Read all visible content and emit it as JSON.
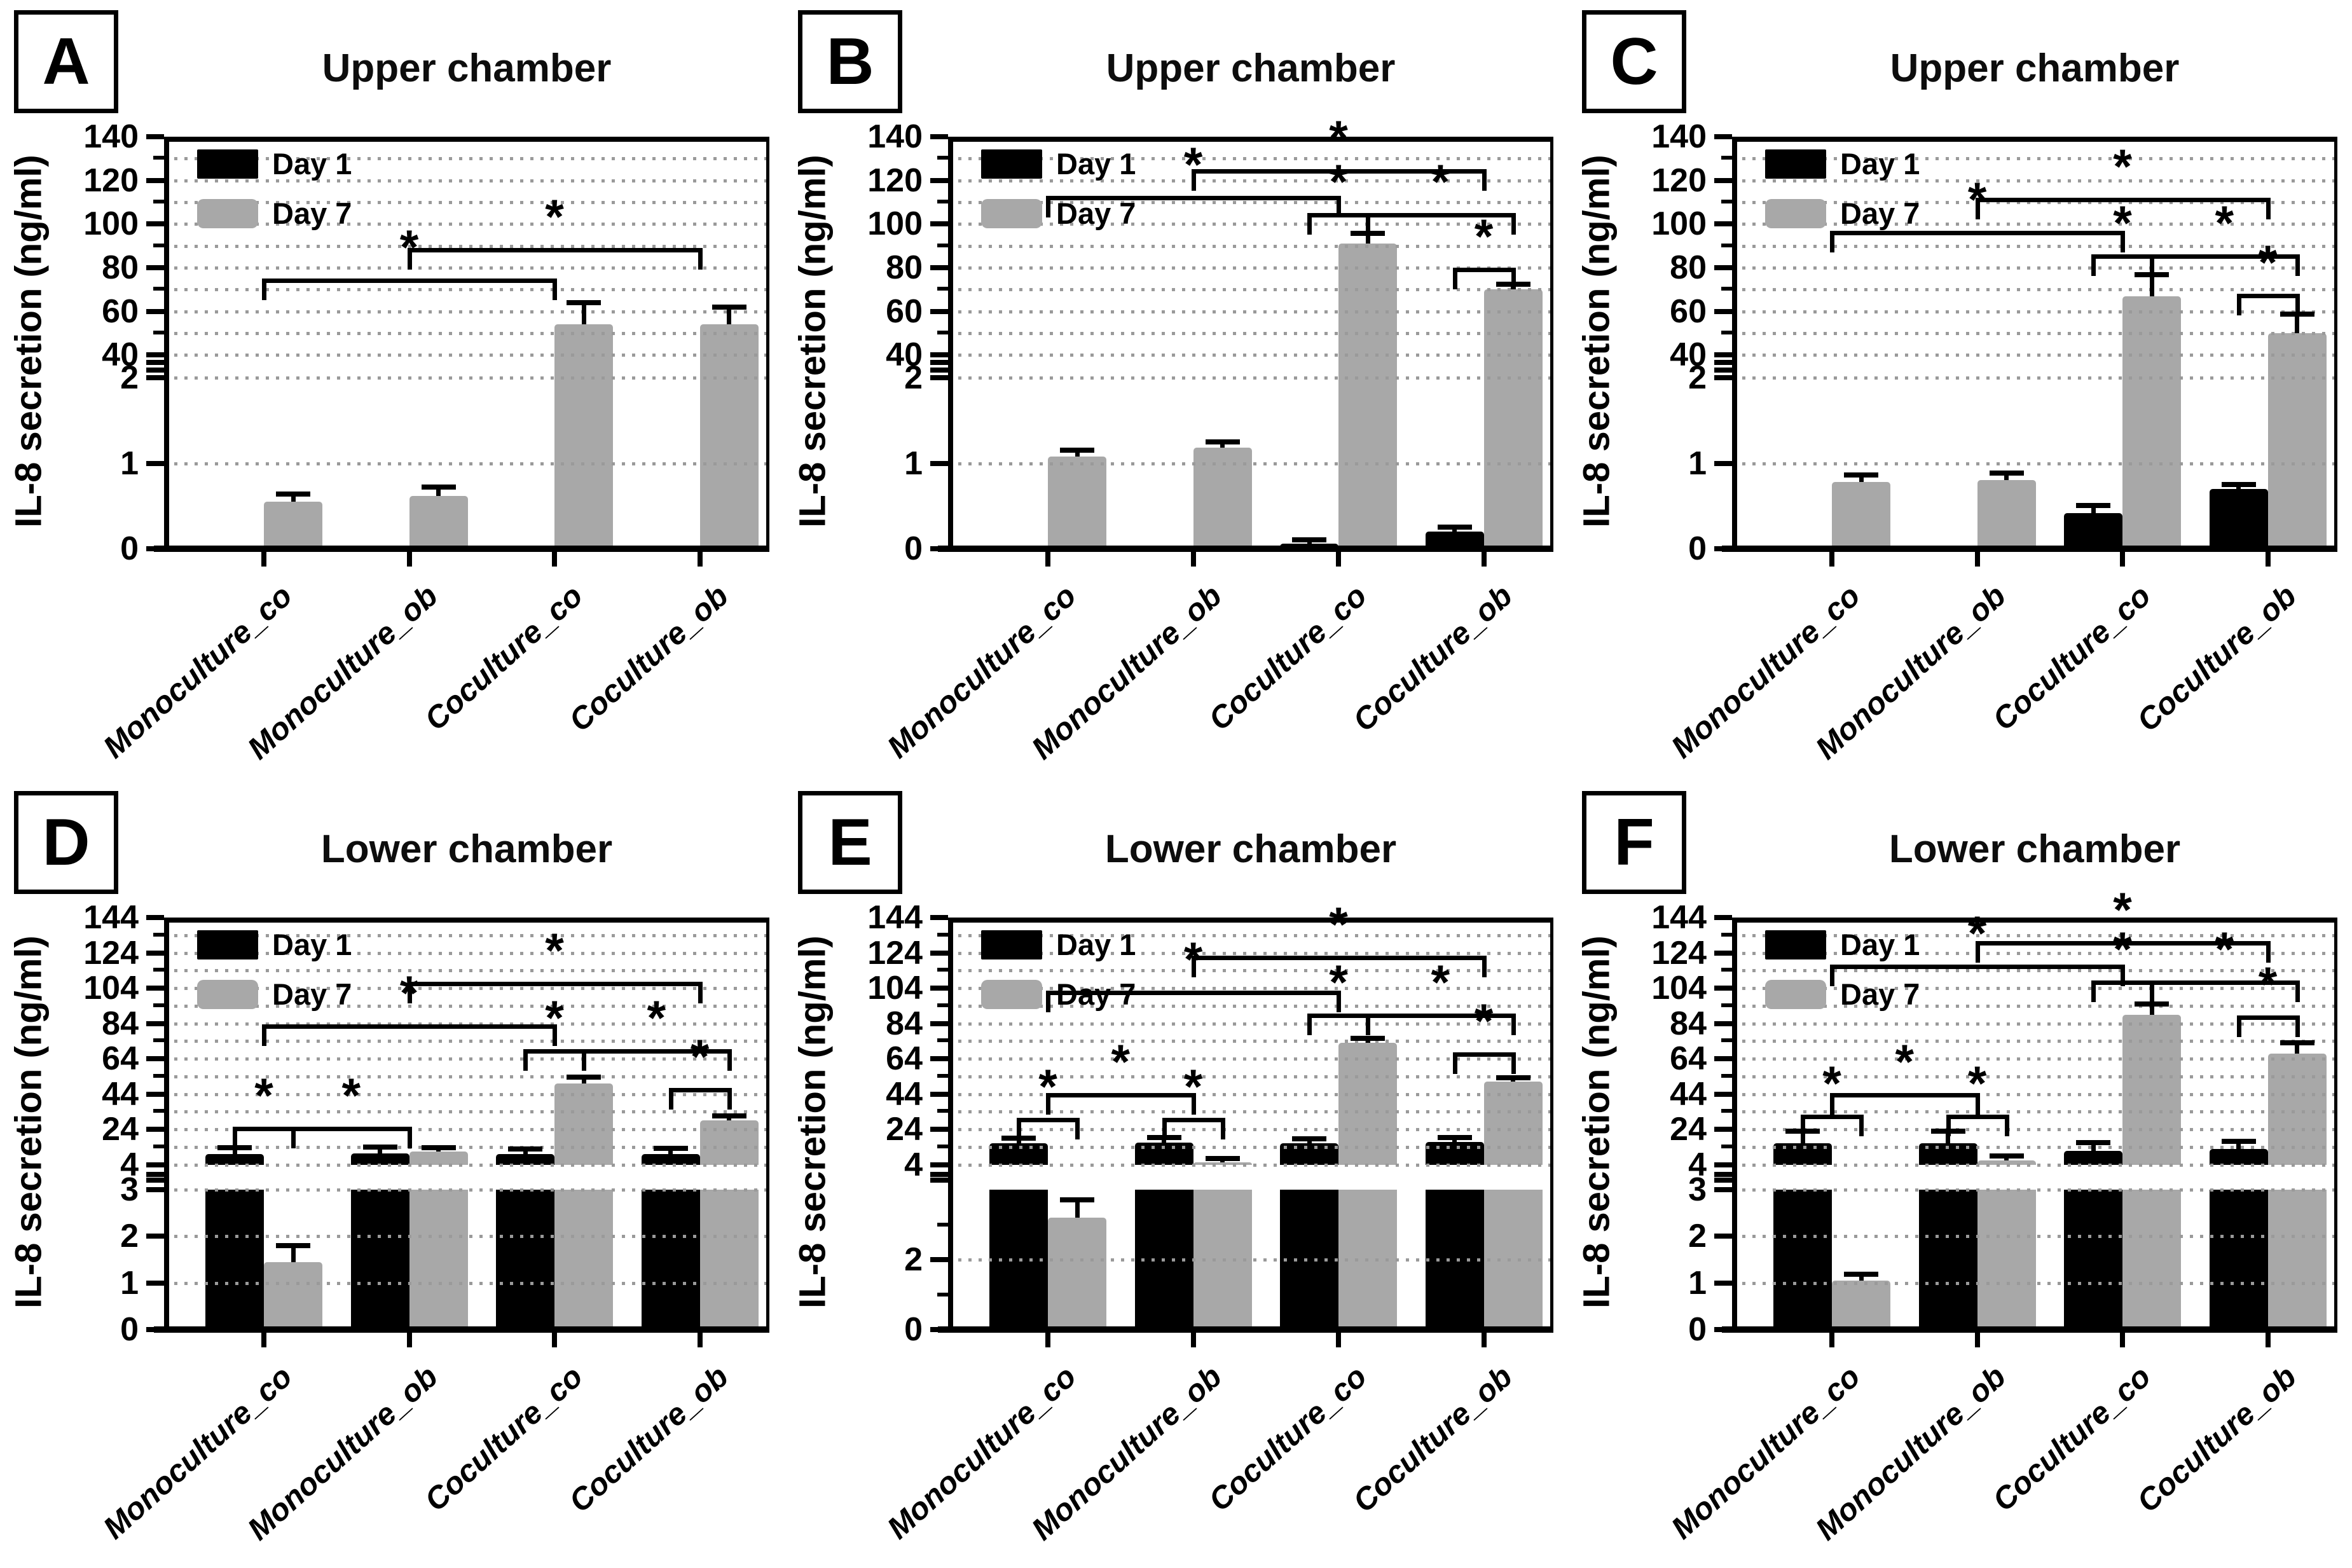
{
  "figure": {
    "background": "#ffffff",
    "colors": {
      "day1_bar": "#000000",
      "day7_bar": "#a8a8a8",
      "grid_dots": "#9a9a9a",
      "axis": "#000000"
    },
    "y_axis_label": "IL-8 secretion (ng/ml)",
    "legend": [
      "Day 1",
      "Day 7"
    ],
    "categories": [
      "Monoculture_co",
      "Monoculture_ob",
      "Coculture_co",
      "Coculture_ob"
    ]
  },
  "chart_data": [
    {
      "type": "bar",
      "letter": "A",
      "title": "Upper chamber",
      "ylabel": "IL-8 secretion (ng/ml)",
      "categories": [
        "Monoculture_co",
        "Monoculture_ob",
        "Coculture_co",
        "Coculture_ob"
      ],
      "axis": {
        "upper": {
          "min": 40,
          "max": 140,
          "step": 10,
          "labels": [
            40,
            60,
            80,
            100,
            120,
            140
          ]
        },
        "lower": {
          "max": 2,
          "labels": [
            0,
            1,
            2
          ],
          "grid": [
            1,
            2
          ],
          "minor": []
        },
        "bar_gap": "continue"
      },
      "series": [
        {
          "name": "Day 1",
          "values": [
            0,
            0,
            0,
            0
          ],
          "errors": [
            0,
            0,
            0,
            0
          ]
        },
        {
          "name": "Day 7",
          "values": [
            0.55,
            0.62,
            54,
            54
          ],
          "errors": [
            0.07,
            0.08,
            9,
            7
          ]
        }
      ],
      "brackets": [
        {
          "from": "g1",
          "to": "g3",
          "y": 73,
          "label": "*"
        },
        {
          "from": "g2",
          "to": "g4",
          "y": 87,
          "label": "*"
        }
      ]
    },
    {
      "type": "bar",
      "letter": "B",
      "title": "Upper chamber",
      "ylabel": "IL-8 secretion (ng/ml)",
      "categories": [
        "Monoculture_co",
        "Monoculture_ob",
        "Coculture_co",
        "Coculture_ob"
      ],
      "axis": {
        "upper": {
          "min": 40,
          "max": 140,
          "step": 10,
          "labels": [
            40,
            60,
            80,
            100,
            120,
            140
          ]
        },
        "lower": {
          "max": 2,
          "labels": [
            0,
            1,
            2
          ],
          "grid": [
            1,
            2
          ],
          "minor": []
        },
        "bar_gap": "continue"
      },
      "series": [
        {
          "name": "Day 1",
          "values": [
            0,
            0,
            0.06,
            0.2
          ],
          "errors": [
            0,
            0,
            0.02,
            0.03
          ]
        },
        {
          "name": "Day 7",
          "values": [
            1.08,
            1.18,
            91,
            70
          ],
          "errors": [
            0.05,
            0.05,
            4,
            1.5
          ]
        }
      ],
      "brackets": [
        {
          "from": "g2",
          "to": "g4",
          "y": 123,
          "label": "*"
        },
        {
          "from": "g1",
          "to": "g3",
          "y": 111,
          "label": "*"
        },
        {
          "from": "g3d1",
          "to": "g3d7",
          "y": 103,
          "label": "*"
        },
        {
          "from": "g3d7",
          "to": "g4d7",
          "y": 103,
          "label": "*"
        },
        {
          "from": "g4d1",
          "to": "g4d7",
          "y": 78,
          "label": "*"
        }
      ]
    },
    {
      "type": "bar",
      "letter": "C",
      "title": "Upper chamber",
      "ylabel": "IL-8 secretion (ng/ml)",
      "categories": [
        "Monoculture_co",
        "Monoculture_ob",
        "Coculture_co",
        "Coculture_ob"
      ],
      "axis": {
        "upper": {
          "min": 40,
          "max": 140,
          "step": 10,
          "labels": [
            40,
            60,
            80,
            100,
            120,
            140
          ]
        },
        "lower": {
          "max": 2,
          "labels": [
            0,
            1,
            2
          ],
          "grid": [
            1,
            2
          ],
          "minor": []
        },
        "bar_gap": "continue"
      },
      "series": [
        {
          "name": "Day 1",
          "values": [
            0,
            0,
            0.42,
            0.7
          ],
          "errors": [
            0,
            0,
            0.06,
            0.03
          ]
        },
        {
          "name": "Day 7",
          "values": [
            0.78,
            0.8,
            67,
            50
          ],
          "errors": [
            0.06,
            0.06,
            9,
            8
          ]
        }
      ],
      "brackets": [
        {
          "from": "g2",
          "to": "g4",
          "y": 110,
          "label": "*"
        },
        {
          "from": "g1",
          "to": "g3",
          "y": 95,
          "label": "*"
        },
        {
          "from": "g3d1",
          "to": "g3d7",
          "y": 84,
          "label": "*"
        },
        {
          "from": "g3d7",
          "to": "g4d7",
          "y": 84,
          "label": "*"
        },
        {
          "from": "g4d1",
          "to": "g4d7",
          "y": 66,
          "label": "*"
        }
      ]
    },
    {
      "type": "bar",
      "letter": "D",
      "title": "Lower chamber",
      "ylabel": "IL-8 secretion (ng/ml)",
      "categories": [
        "Monoculture_co",
        "Monoculture_ob",
        "Coculture_co",
        "Coculture_ob"
      ],
      "axis": {
        "upper": {
          "min": 4,
          "max": 144,
          "step": 10,
          "labels": [
            4,
            24,
            44,
            64,
            84,
            104,
            124,
            144
          ]
        },
        "lower": {
          "max": 3,
          "labels": [
            0,
            1,
            2,
            3
          ],
          "grid": [
            1,
            2,
            3
          ],
          "minor": []
        },
        "bar_gap": "break"
      },
      "series": [
        {
          "name": "Day 1",
          "values": [
            10,
            10.5,
            10,
            10.2
          ],
          "errors": [
            2.5,
            2.5,
            2,
            2
          ]
        },
        {
          "name": "Day 7",
          "values": [
            1.45,
            11.5,
            50,
            29
          ],
          "errors": [
            0.3,
            1,
            2.5,
            1.5
          ]
        }
      ],
      "brackets": [
        {
          "from": "g2",
          "to": "g4",
          "y": 105,
          "label": "*"
        },
        {
          "from": "g1",
          "to": "g3",
          "y": 81,
          "label": "*"
        },
        {
          "from": "g3d1",
          "to": "g3d7",
          "y": 67,
          "label": "*"
        },
        {
          "from": "g3d7",
          "to": "g4d7",
          "y": 67,
          "label": "*"
        },
        {
          "from": "g4d1",
          "to": "g4d7",
          "y": 45,
          "label": "*"
        },
        {
          "from": "g1d1",
          "to": "g1d7",
          "y": 23,
          "label": "*"
        },
        {
          "from": "g1d7",
          "to": "g2",
          "y": 23,
          "label": "*"
        }
      ]
    },
    {
      "type": "bar",
      "letter": "E",
      "title": "Lower chamber",
      "ylabel": "IL-8 secretion (ng/ml)",
      "categories": [
        "Monoculture_co",
        "Monoculture_ob",
        "Coculture_co",
        "Coculture_ob"
      ],
      "axis": {
        "upper": {
          "min": 4,
          "max": 144,
          "step": 10,
          "labels": [
            4,
            24,
            44,
            64,
            84,
            104,
            124,
            144
          ]
        },
        "lower": {
          "max": 4,
          "labels": [
            0,
            2,
            4
          ],
          "grid": [
            2,
            4
          ],
          "minor": [
            1,
            3
          ]
        },
        "bar_gap": "break"
      },
      "series": [
        {
          "name": "Day 1",
          "values": [
            16,
            16.5,
            16,
            16.8
          ],
          "errors": [
            2,
            2,
            1.5,
            1.5
          ]
        },
        {
          "name": "Day 7",
          "values": [
            3.2,
            5.5,
            73,
            51
          ],
          "errors": [
            0.45,
            0.8,
            1.5,
            1
          ]
        }
      ],
      "brackets": [
        {
          "from": "g2",
          "to": "g4",
          "y": 120,
          "label": "*"
        },
        {
          "from": "g1",
          "to": "g3",
          "y": 100,
          "label": "*"
        },
        {
          "from": "g3d1",
          "to": "g3d7",
          "y": 87,
          "label": "*"
        },
        {
          "from": "g3d7",
          "to": "g4d7",
          "y": 87,
          "label": "*"
        },
        {
          "from": "g4d1",
          "to": "g4d7",
          "y": 65,
          "label": "*"
        },
        {
          "from": "g1",
          "to": "g2",
          "y": 42,
          "label": "*"
        },
        {
          "from": "g1d1",
          "to": "g1d7",
          "y": 28,
          "label": "*"
        },
        {
          "from": "g2d1",
          "to": "g2d7",
          "y": 28,
          "label": "*"
        }
      ]
    },
    {
      "type": "bar",
      "letter": "F",
      "title": "Lower chamber",
      "ylabel": "IL-8 secretion (ng/ml)",
      "categories": [
        "Monoculture_co",
        "Monoculture_ob",
        "Coculture_co",
        "Coculture_ob"
      ],
      "axis": {
        "upper": {
          "min": 4,
          "max": 144,
          "step": 10,
          "labels": [
            4,
            24,
            44,
            64,
            84,
            104,
            124,
            144
          ]
        },
        "lower": {
          "max": 3,
          "labels": [
            0,
            1,
            2,
            3
          ],
          "grid": [
            1,
            2,
            3
          ],
          "minor": []
        },
        "bar_gap": "break"
      },
      "series": [
        {
          "name": "Day 1",
          "values": [
            16,
            16,
            12,
            13
          ],
          "errors": [
            6,
            6,
            3.5,
            3
          ]
        },
        {
          "name": "Day 7",
          "values": [
            1.05,
            6.5,
            89,
            67
          ],
          "errors": [
            0.1,
            1.5,
            5,
            5
          ]
        }
      ],
      "brackets": [
        {
          "from": "g2",
          "to": "g4",
          "y": 128,
          "label": "*"
        },
        {
          "from": "g1",
          "to": "g3",
          "y": 115,
          "label": "*"
        },
        {
          "from": "g3d1",
          "to": "g3d7",
          "y": 106,
          "label": "*"
        },
        {
          "from": "g3d7",
          "to": "g4d7",
          "y": 106,
          "label": "*"
        },
        {
          "from": "g4d1",
          "to": "g4d7",
          "y": 86,
          "label": "*"
        },
        {
          "from": "g1",
          "to": "g2",
          "y": 42,
          "label": "*"
        },
        {
          "from": "g1d1",
          "to": "g1d7",
          "y": 30,
          "label": "*"
        },
        {
          "from": "g2d1",
          "to": "g2d7",
          "y": 30,
          "label": "*"
        }
      ]
    }
  ]
}
